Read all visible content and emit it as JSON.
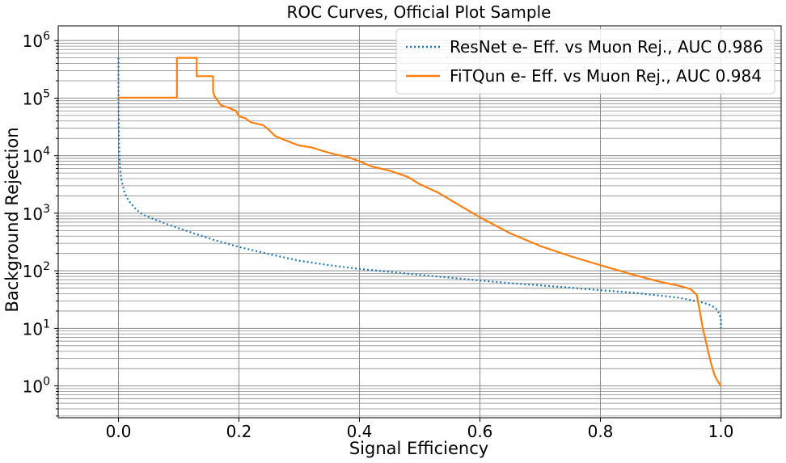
{
  "chart_data": {
    "type": "line",
    "title": "ROC Curves, Official Plot Sample",
    "xlabel": "Signal Efficiency",
    "ylabel": "Background Rejection",
    "xlim": [
      -0.1,
      1.1
    ],
    "ylim": [
      0.28,
      1800000
    ],
    "yscale": "log",
    "grid": true,
    "legend_position": "top-right",
    "xticks": [
      0.0,
      0.2,
      0.4,
      0.6,
      0.8,
      1.0
    ],
    "xtick_labels": [
      "0.0",
      "0.2",
      "0.4",
      "0.6",
      "0.8",
      "1.0"
    ],
    "ytick_labels": [
      {
        "base": "10",
        "exp": "0",
        "value": 1
      },
      {
        "base": "10",
        "exp": "1",
        "value": 10
      },
      {
        "base": "10",
        "exp": "2",
        "value": 100
      },
      {
        "base": "10",
        "exp": "3",
        "value": 1000
      },
      {
        "base": "10",
        "exp": "4",
        "value": 10000
      },
      {
        "base": "10",
        "exp": "5",
        "value": 100000
      },
      {
        "base": "10",
        "exp": "6",
        "value": 1000000
      }
    ],
    "series": [
      {
        "name": "ResNet e- Eff. vs Muon Rej., AUC 0.986",
        "color": "#1f77b4",
        "style": "dotted",
        "x": [
          0.0,
          0.0,
          0.0005,
          0.001,
          0.002,
          0.003,
          0.005,
          0.008,
          0.01,
          0.015,
          0.02,
          0.03,
          0.04,
          0.06,
          0.08,
          0.1,
          0.13,
          0.16,
          0.2,
          0.25,
          0.3,
          0.35,
          0.4,
          0.45,
          0.5,
          0.55,
          0.6,
          0.65,
          0.7,
          0.75,
          0.8,
          0.85,
          0.9,
          0.93,
          0.95,
          0.97,
          0.98,
          0.99,
          0.995,
          0.998,
          1.0,
          1.0
        ],
        "y": [
          500000,
          100000,
          40000,
          15000,
          8000,
          5500,
          3800,
          2800,
          2300,
          1800,
          1500,
          1150,
          950,
          780,
          650,
          550,
          430,
          340,
          260,
          195,
          150,
          125,
          108,
          96,
          85,
          76,
          68,
          61,
          56,
          51,
          46,
          42,
          37,
          34,
          31,
          28,
          26,
          23,
          20,
          17,
          15,
          10
        ]
      },
      {
        "name": "FiTQun e- Eff. vs Muon Rej., AUC 0.984",
        "color": "#ff7f0e",
        "style": "solid",
        "x": [
          0.0,
          0.0,
          0.097,
          0.097,
          0.13,
          0.13,
          0.157,
          0.157,
          0.16,
          0.165,
          0.17,
          0.18,
          0.195,
          0.2,
          0.21,
          0.22,
          0.24,
          0.25,
          0.26,
          0.28,
          0.3,
          0.32,
          0.34,
          0.36,
          0.38,
          0.4,
          0.42,
          0.45,
          0.48,
          0.5,
          0.53,
          0.56,
          0.6,
          0.65,
          0.7,
          0.75,
          0.8,
          0.85,
          0.9,
          0.93,
          0.95,
          0.96,
          0.965,
          0.97,
          0.975,
          0.98,
          0.985,
          0.99,
          0.995,
          1.0
        ],
        "y": [
          100000,
          102000,
          102000,
          500000,
          500000,
          240000,
          240000,
          130000,
          105000,
          90000,
          75000,
          70000,
          60000,
          48000,
          45000,
          38000,
          34000,
          28000,
          22000,
          18000,
          15000,
          14000,
          12000,
          10500,
          9500,
          8000,
          6500,
          5500,
          4300,
          3200,
          2300,
          1500,
          850,
          450,
          270,
          180,
          125,
          88,
          64,
          55,
          48,
          38,
          20,
          10,
          6,
          3.5,
          2.2,
          1.5,
          1.2,
          1.0
        ]
      }
    ]
  }
}
